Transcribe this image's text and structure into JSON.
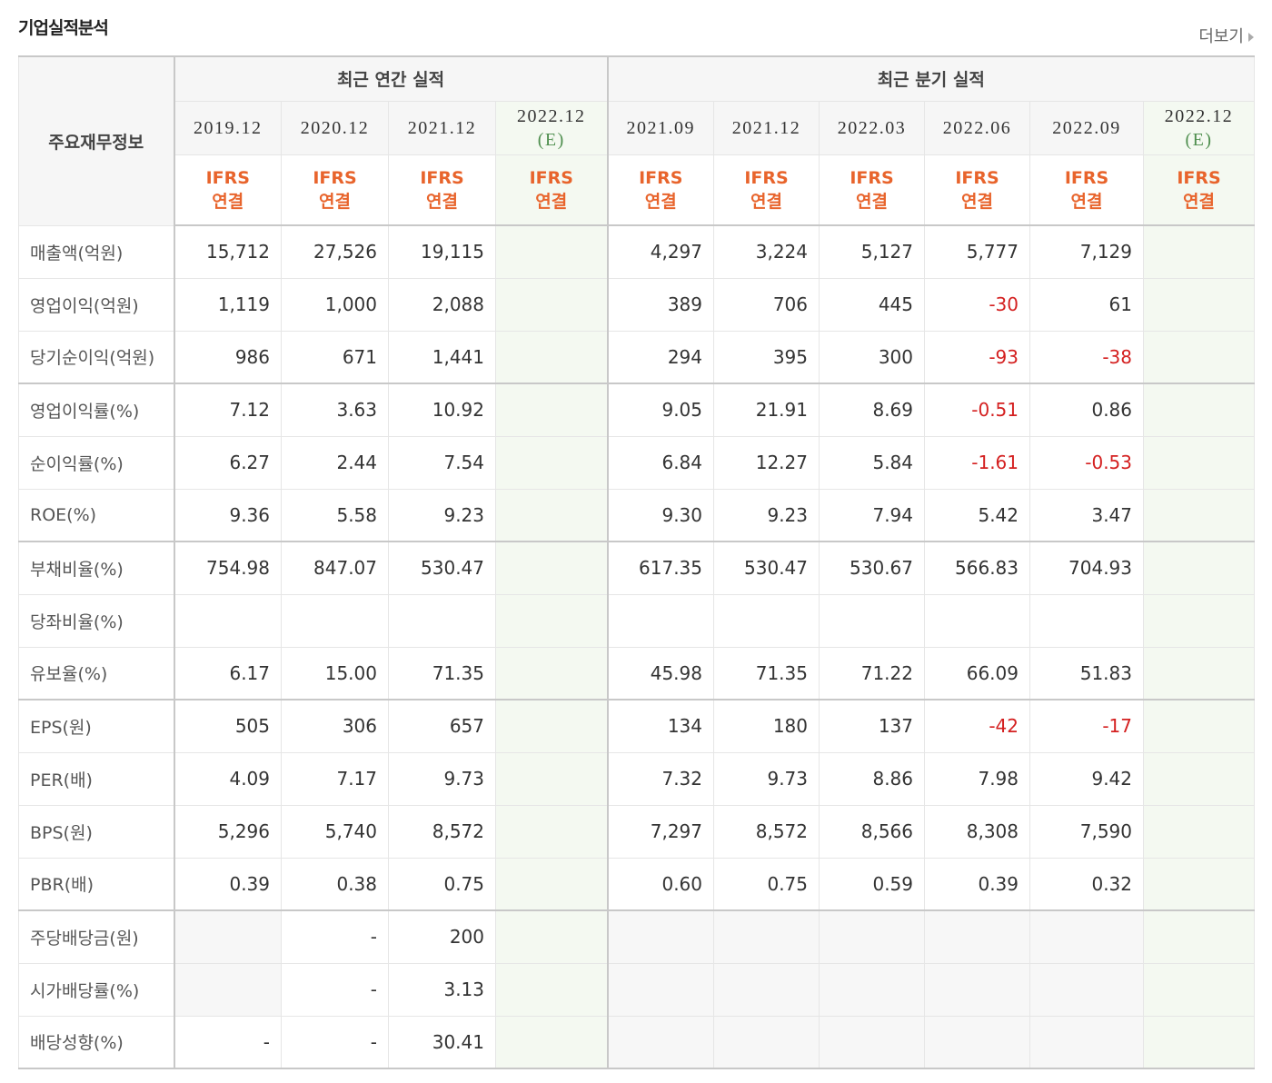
{
  "header": {
    "title": "기업실적분석",
    "more": "더보기"
  },
  "table": {
    "corner": "주요재무정보",
    "groups": [
      {
        "label": "최근 연간 실적",
        "columns": [
          {
            "period": "2019.12",
            "basis": [
              "IFRS",
              "연결"
            ]
          },
          {
            "period": "2020.12",
            "basis": [
              "IFRS",
              "연결"
            ]
          },
          {
            "period": "2021.12",
            "basis": [
              "IFRS",
              "연결"
            ]
          },
          {
            "period": "2022.12",
            "estimate": "(E)",
            "basis": [
              "IFRS",
              "연결"
            ]
          }
        ]
      },
      {
        "label": "최근 분기 실적",
        "columns": [
          {
            "period": "2021.09",
            "basis": [
              "IFRS",
              "연결"
            ]
          },
          {
            "period": "2021.12",
            "basis": [
              "IFRS",
              "연결"
            ]
          },
          {
            "period": "2022.03",
            "basis": [
              "IFRS",
              "연결"
            ]
          },
          {
            "period": "2022.06",
            "basis": [
              "IFRS",
              "연결"
            ]
          },
          {
            "period": "2022.09",
            "basis": [
              "IFRS",
              "연결"
            ]
          },
          {
            "period": "2022.12",
            "estimate": "(E)",
            "basis": [
              "IFRS",
              "연결"
            ]
          }
        ]
      }
    ],
    "rows": [
      {
        "label": "매출액(억원)",
        "cells": [
          "15,712",
          "27,526",
          "19,115",
          null,
          "4,297",
          "3,224",
          "5,127",
          "5,777",
          "7,129",
          null
        ]
      },
      {
        "label": "영업이익(억원)",
        "cells": [
          "1,119",
          "1,000",
          "2,088",
          null,
          "389",
          "706",
          "445",
          "-30",
          "61",
          null
        ]
      },
      {
        "label": "당기순이익(억원)",
        "cells": [
          "986",
          "671",
          "1,441",
          null,
          "294",
          "395",
          "300",
          "-93",
          "-38",
          null
        ]
      },
      {
        "label": "영업이익률(%)",
        "cells": [
          "7.12",
          "3.63",
          "10.92",
          null,
          "9.05",
          "21.91",
          "8.69",
          "-0.51",
          "0.86",
          null
        ]
      },
      {
        "label": "순이익률(%)",
        "cells": [
          "6.27",
          "2.44",
          "7.54",
          null,
          "6.84",
          "12.27",
          "5.84",
          "-1.61",
          "-0.53",
          null
        ]
      },
      {
        "label": "ROE(%)",
        "cells": [
          "9.36",
          "5.58",
          "9.23",
          null,
          "9.30",
          "9.23",
          "7.94",
          "5.42",
          "3.47",
          null
        ]
      },
      {
        "label": "부채비율(%)",
        "cells": [
          "754.98",
          "847.07",
          "530.47",
          null,
          "617.35",
          "530.47",
          "530.67",
          "566.83",
          "704.93",
          null
        ]
      },
      {
        "label": "당좌비율(%)",
        "cells": [
          null,
          null,
          null,
          null,
          null,
          null,
          null,
          null,
          null,
          null
        ]
      },
      {
        "label": "유보율(%)",
        "cells": [
          "6.17",
          "15.00",
          "71.35",
          null,
          "45.98",
          "71.35",
          "71.22",
          "66.09",
          "51.83",
          null
        ]
      },
      {
        "label": "EPS(원)",
        "cells": [
          "505",
          "306",
          "657",
          null,
          "134",
          "180",
          "137",
          "-42",
          "-17",
          null
        ]
      },
      {
        "label": "PER(배)",
        "cells": [
          "4.09",
          "7.17",
          "9.73",
          null,
          "7.32",
          "9.73",
          "8.86",
          "7.98",
          "9.42",
          null
        ]
      },
      {
        "label": "BPS(원)",
        "cells": [
          "5,296",
          "5,740",
          "8,572",
          null,
          "7,297",
          "8,572",
          "8,566",
          "8,308",
          "7,590",
          null
        ]
      },
      {
        "label": "PBR(배)",
        "cells": [
          "0.39",
          "0.38",
          "0.75",
          null,
          "0.60",
          "0.75",
          "0.59",
          "0.39",
          "0.32",
          null
        ]
      },
      {
        "label": "주당배당금(원)",
        "cells": [
          null,
          "-",
          "200",
          null,
          null,
          null,
          null,
          null,
          null,
          null
        ]
      },
      {
        "label": "시가배당률(%)",
        "cells": [
          null,
          "-",
          "3.13",
          null,
          null,
          null,
          null,
          null,
          null,
          null
        ]
      },
      {
        "label": "배당성향(%)",
        "cells": [
          "-",
          "-",
          "30.41",
          null,
          null,
          null,
          null,
          null,
          null,
          null
        ]
      }
    ]
  }
}
